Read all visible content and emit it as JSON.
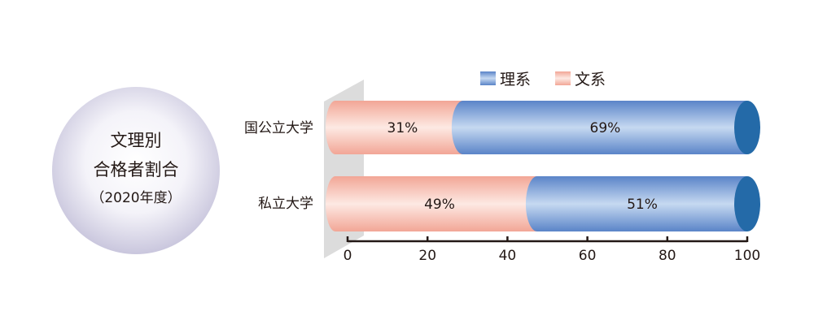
{
  "title_circle": {
    "line1": "文理別",
    "line2": "合格者割合",
    "line3": "（2020年度）"
  },
  "chart_data": {
    "type": "bar",
    "orientation": "horizontal",
    "stacked": true,
    "categories": [
      "国公立大学",
      "私立大学"
    ],
    "series": [
      {
        "name": "文系",
        "values": [
          31,
          49
        ],
        "labels": [
          "31%",
          "49%"
        ],
        "color": "#f4ad9f"
      },
      {
        "name": "理系",
        "values": [
          69,
          51
        ],
        "labels": [
          "69%",
          "51%"
        ],
        "color": "#5b86c9"
      }
    ],
    "legend_order": [
      "理系",
      "文系"
    ],
    "legend_position": "top",
    "xlim": [
      0,
      100
    ],
    "xticks": [
      "0",
      "20",
      "40",
      "60",
      "80",
      "100"
    ],
    "grid": false,
    "end_cap_color": "#246aa8"
  }
}
